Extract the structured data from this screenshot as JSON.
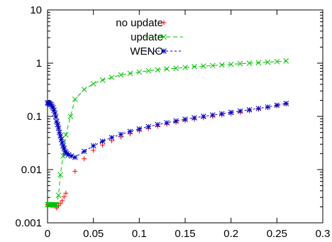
{
  "chart_data": {
    "type": "line",
    "title": "",
    "xlabel": "",
    "ylabel": "",
    "xlim": [
      0,
      0.3
    ],
    "ylim": [
      0.001,
      10
    ],
    "yscale": "log",
    "grid": false,
    "legend_position": "top-right",
    "xticks": [
      0,
      0.05,
      0.1,
      0.15,
      0.2,
      0.25,
      0.3
    ],
    "xtick_labels": [
      "0",
      "0.05",
      "0.1",
      "0.15",
      "0.2",
      "0.25",
      "0.3"
    ],
    "yticks": [
      0.001,
      0.01,
      0.1,
      1,
      10
    ],
    "ytick_labels": [
      "0.001",
      "0.01",
      "0.1",
      "1",
      "10"
    ],
    "series": [
      {
        "name": "no update",
        "color": "#ff0000",
        "marker": "plus",
        "line": "none",
        "x": [
          0.0,
          0.002,
          0.004,
          0.006,
          0.008,
          0.01,
          0.012,
          0.014,
          0.016,
          0.018,
          0.02,
          0.03,
          0.04,
          0.05,
          0.06,
          0.07,
          0.08,
          0.09,
          0.1,
          0.11,
          0.12,
          0.13,
          0.14,
          0.15,
          0.16,
          0.17,
          0.18,
          0.19,
          0.2,
          0.21,
          0.22,
          0.23,
          0.24,
          0.25,
          0.26
        ],
        "y": [
          0.0022,
          0.0022,
          0.0021,
          0.0021,
          0.0021,
          0.0019,
          0.0021,
          0.0023,
          0.0026,
          0.0031,
          0.0036,
          0.0093,
          0.016,
          0.023,
          0.029,
          0.035,
          0.041,
          0.047,
          0.053,
          0.059,
          0.065,
          0.071,
          0.077,
          0.083,
          0.088,
          0.094,
          0.1,
          0.106,
          0.112,
          0.119,
          0.127,
          0.136,
          0.146,
          0.158,
          0.17
        ]
      },
      {
        "name": "update",
        "color": "#00c000",
        "marker": "x",
        "line": "dashed",
        "x": [
          0.0,
          0.001,
          0.002,
          0.003,
          0.004,
          0.005,
          0.006,
          0.007,
          0.008,
          0.009,
          0.01,
          0.012,
          0.014,
          0.017,
          0.02,
          0.025,
          0.03,
          0.04,
          0.05,
          0.06,
          0.07,
          0.08,
          0.09,
          0.1,
          0.11,
          0.12,
          0.13,
          0.14,
          0.15,
          0.16,
          0.17,
          0.18,
          0.19,
          0.2,
          0.21,
          0.22,
          0.23,
          0.24,
          0.25,
          0.26
        ],
        "y": [
          0.0022,
          0.0022,
          0.0022,
          0.0022,
          0.0022,
          0.0022,
          0.0022,
          0.0022,
          0.0022,
          0.0022,
          0.0022,
          0.0033,
          0.008,
          0.018,
          0.045,
          0.1,
          0.21,
          0.32,
          0.41,
          0.48,
          0.54,
          0.6,
          0.64,
          0.68,
          0.72,
          0.75,
          0.78,
          0.8,
          0.83,
          0.86,
          0.88,
          0.9,
          0.93,
          0.95,
          0.98,
          1.0,
          1.02,
          1.04,
          1.07,
          1.1
        ]
      },
      {
        "name": "WENO",
        "color": "#0000c0",
        "marker": "star",
        "line": "dotted",
        "x": [
          0.0,
          0.001,
          0.002,
          0.003,
          0.004,
          0.005,
          0.006,
          0.007,
          0.008,
          0.009,
          0.01,
          0.011,
          0.012,
          0.013,
          0.014,
          0.015,
          0.016,
          0.017,
          0.018,
          0.019,
          0.02,
          0.021,
          0.023,
          0.026,
          0.03,
          0.04,
          0.05,
          0.06,
          0.07,
          0.08,
          0.09,
          0.1,
          0.11,
          0.12,
          0.13,
          0.14,
          0.15,
          0.16,
          0.17,
          0.18,
          0.19,
          0.2,
          0.21,
          0.22,
          0.23,
          0.24,
          0.25,
          0.26
        ],
        "y": [
          0.18,
          0.178,
          0.175,
          0.17,
          0.165,
          0.155,
          0.145,
          0.13,
          0.115,
          0.098,
          0.08,
          0.07,
          0.06,
          0.05,
          0.043,
          0.037,
          0.032,
          0.028,
          0.025,
          0.022,
          0.021,
          0.02,
          0.019,
          0.018,
          0.017,
          0.022,
          0.028,
          0.034,
          0.04,
          0.046,
          0.052,
          0.058,
          0.064,
          0.07,
          0.076,
          0.082,
          0.088,
          0.094,
          0.1,
          0.106,
          0.112,
          0.119,
          0.126,
          0.133,
          0.141,
          0.15,
          0.162,
          0.175
        ]
      }
    ]
  }
}
